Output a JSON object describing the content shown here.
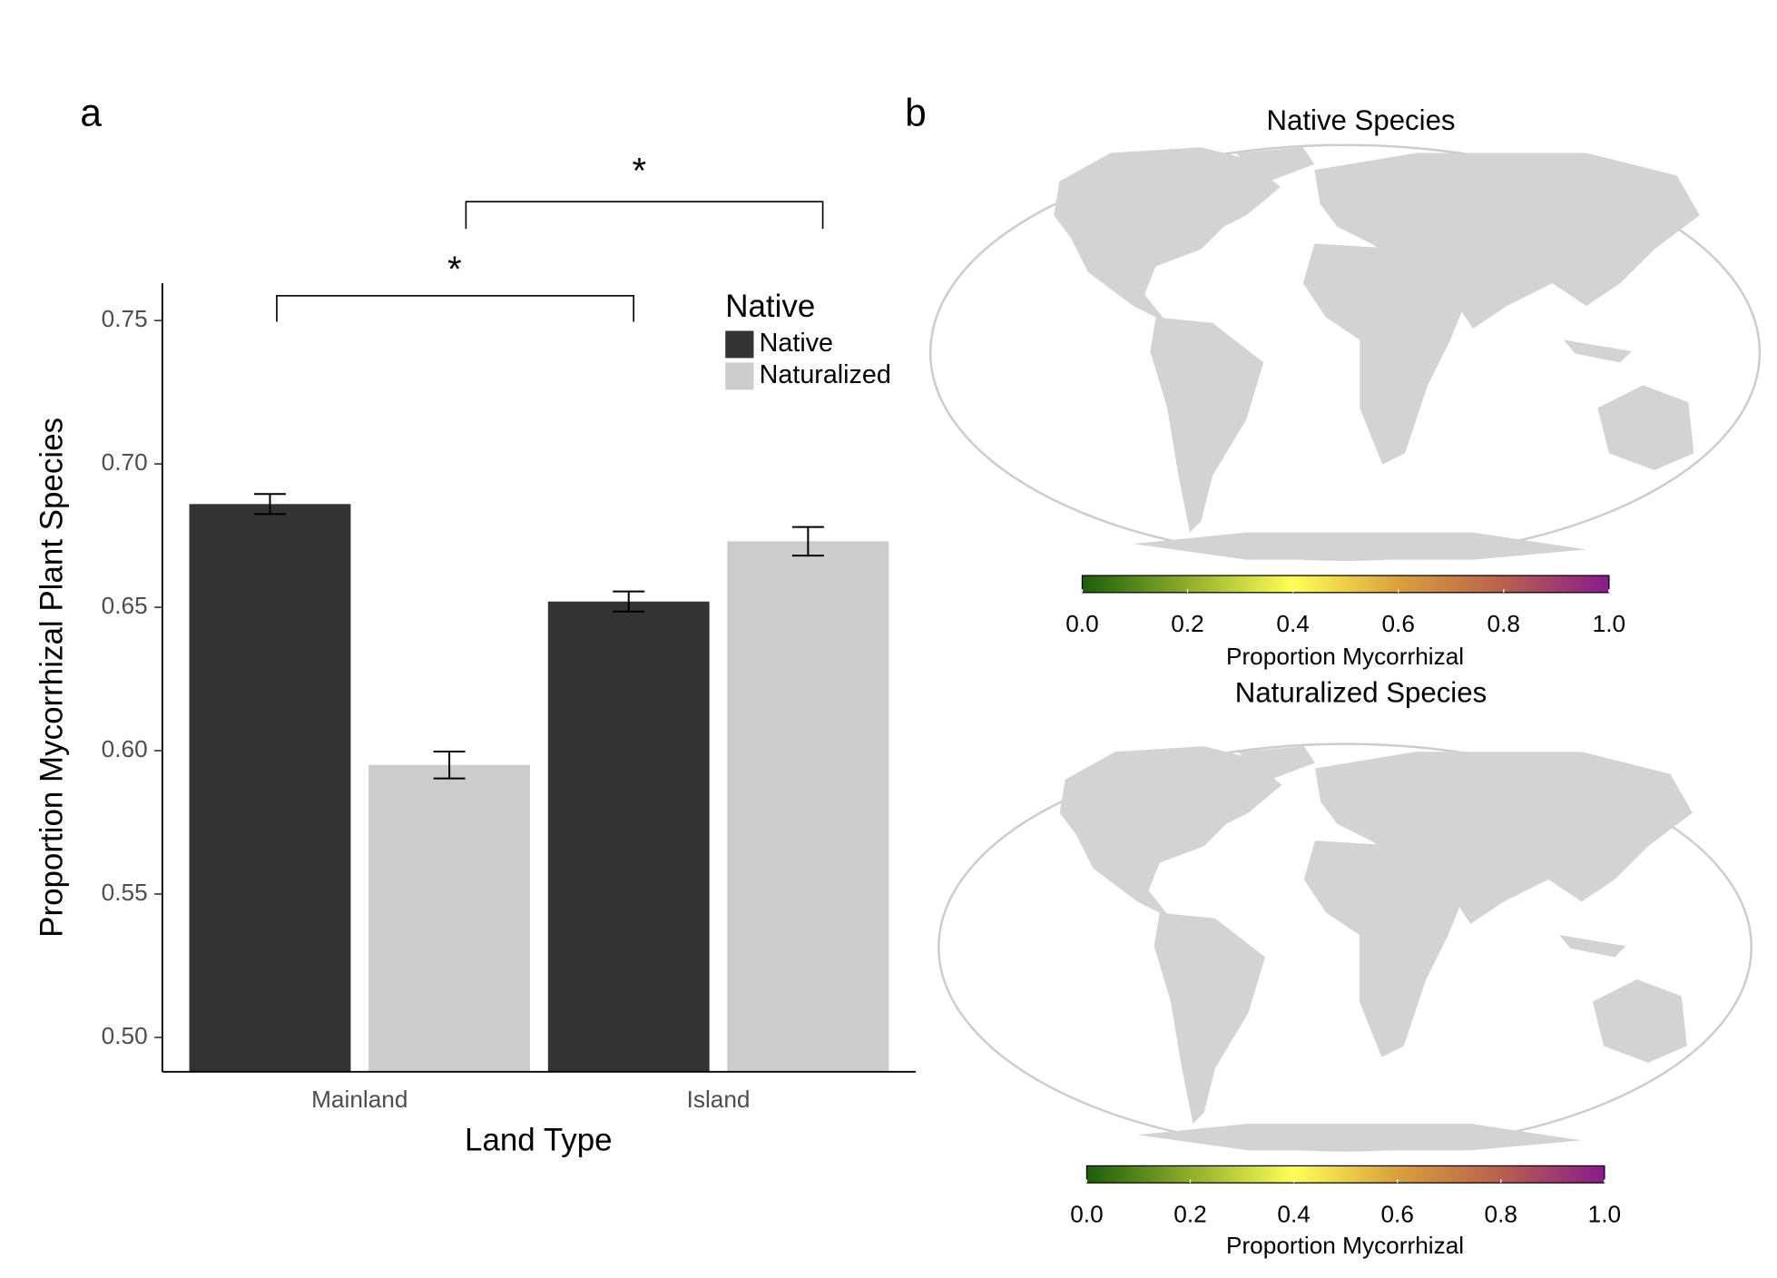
{
  "chart_data": [
    {
      "type": "bar",
      "panel_label": "a",
      "categories": [
        "Mainland",
        "Island"
      ],
      "series": [
        {
          "name": "Native",
          "color": "#333333",
          "values": [
            0.686,
            0.652
          ],
          "errors": [
            0.0035,
            0.0035
          ]
        },
        {
          "name": "Naturalized",
          "color": "#cccccc",
          "values": [
            0.595,
            0.673
          ],
          "errors": [
            0.0047,
            0.005
          ]
        }
      ],
      "ylim": [
        0.488,
        0.763
      ],
      "yticks": [
        {
          "value": 0.5,
          "label": "0.50"
        },
        0.55,
        {
          "value": 0.6,
          "label": "0.60"
        },
        0.65,
        {
          "value": 0.7,
          "label": "0.70"
        },
        0.75
      ],
      "xlabel": "Land Type",
      "ylabel": "Proportion Mycorrhizal Plant Species",
      "legend_title": "Native",
      "annotations": [
        "*",
        "*"
      ]
    },
    {
      "type": "map",
      "panel_label": "b",
      "title": "Native Species",
      "colorbar_label": "Proportion Mycorrhizal",
      "clim": [
        0,
        1
      ],
      "cticks": [
        {
          "value": 0,
          "label": "0.0"
        },
        0.2,
        0.4,
        0.6,
        0.8,
        {
          "value": 1,
          "label": "1.0"
        }
      ],
      "colormap": [
        "#1b5e0b",
        "#8fae2a",
        "#ffff55",
        "#d9a03c",
        "#b8604e",
        "#8a1a8e"
      ]
    },
    {
      "type": "map",
      "title": "Naturalized Species",
      "colorbar_label": "Proportion Mycorrhizal",
      "clim": [
        0,
        1
      ],
      "cticks": [
        {
          "value": 0,
          "label": "0.0"
        },
        0.2,
        0.4,
        0.6,
        0.8,
        {
          "value": 1,
          "label": "1.0"
        }
      ],
      "colormap": [
        "#1b5e0b",
        "#8fae2a",
        "#ffff55",
        "#d9a03c",
        "#b8604e",
        "#8a1a8e"
      ]
    }
  ]
}
